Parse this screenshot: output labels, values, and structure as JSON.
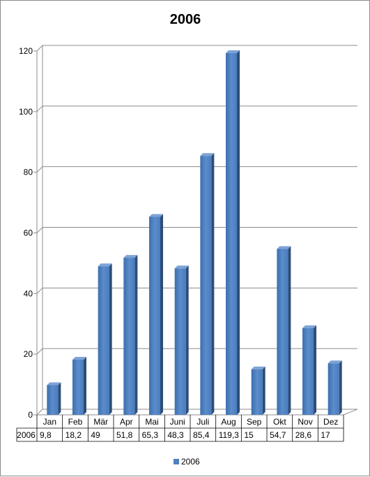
{
  "chart_data": {
    "type": "bar",
    "title": "2006",
    "categories": [
      "Jan",
      "Feb",
      "Mär",
      "Apr",
      "Mai",
      "Juni",
      "Juli",
      "Aug",
      "Sep",
      "Okt",
      "Nov",
      "Dez"
    ],
    "series": [
      {
        "name": "2006",
        "values": [
          9.8,
          18.2,
          49,
          51.8,
          65.3,
          48.3,
          85.4,
          119.3,
          15,
          54.7,
          28.6,
          17
        ],
        "labels": [
          "9,8",
          "18,2",
          "49",
          "51,8",
          "65,3",
          "48,3",
          "85,4",
          "119,3",
          "15",
          "54,7",
          "28,6",
          "17"
        ],
        "color": "#4F81BD"
      }
    ],
    "ylim": [
      0,
      120
    ],
    "yticks": [
      0,
      20,
      40,
      60,
      80,
      100,
      120
    ],
    "grid": true,
    "data_table": true,
    "legend": "bottom"
  }
}
